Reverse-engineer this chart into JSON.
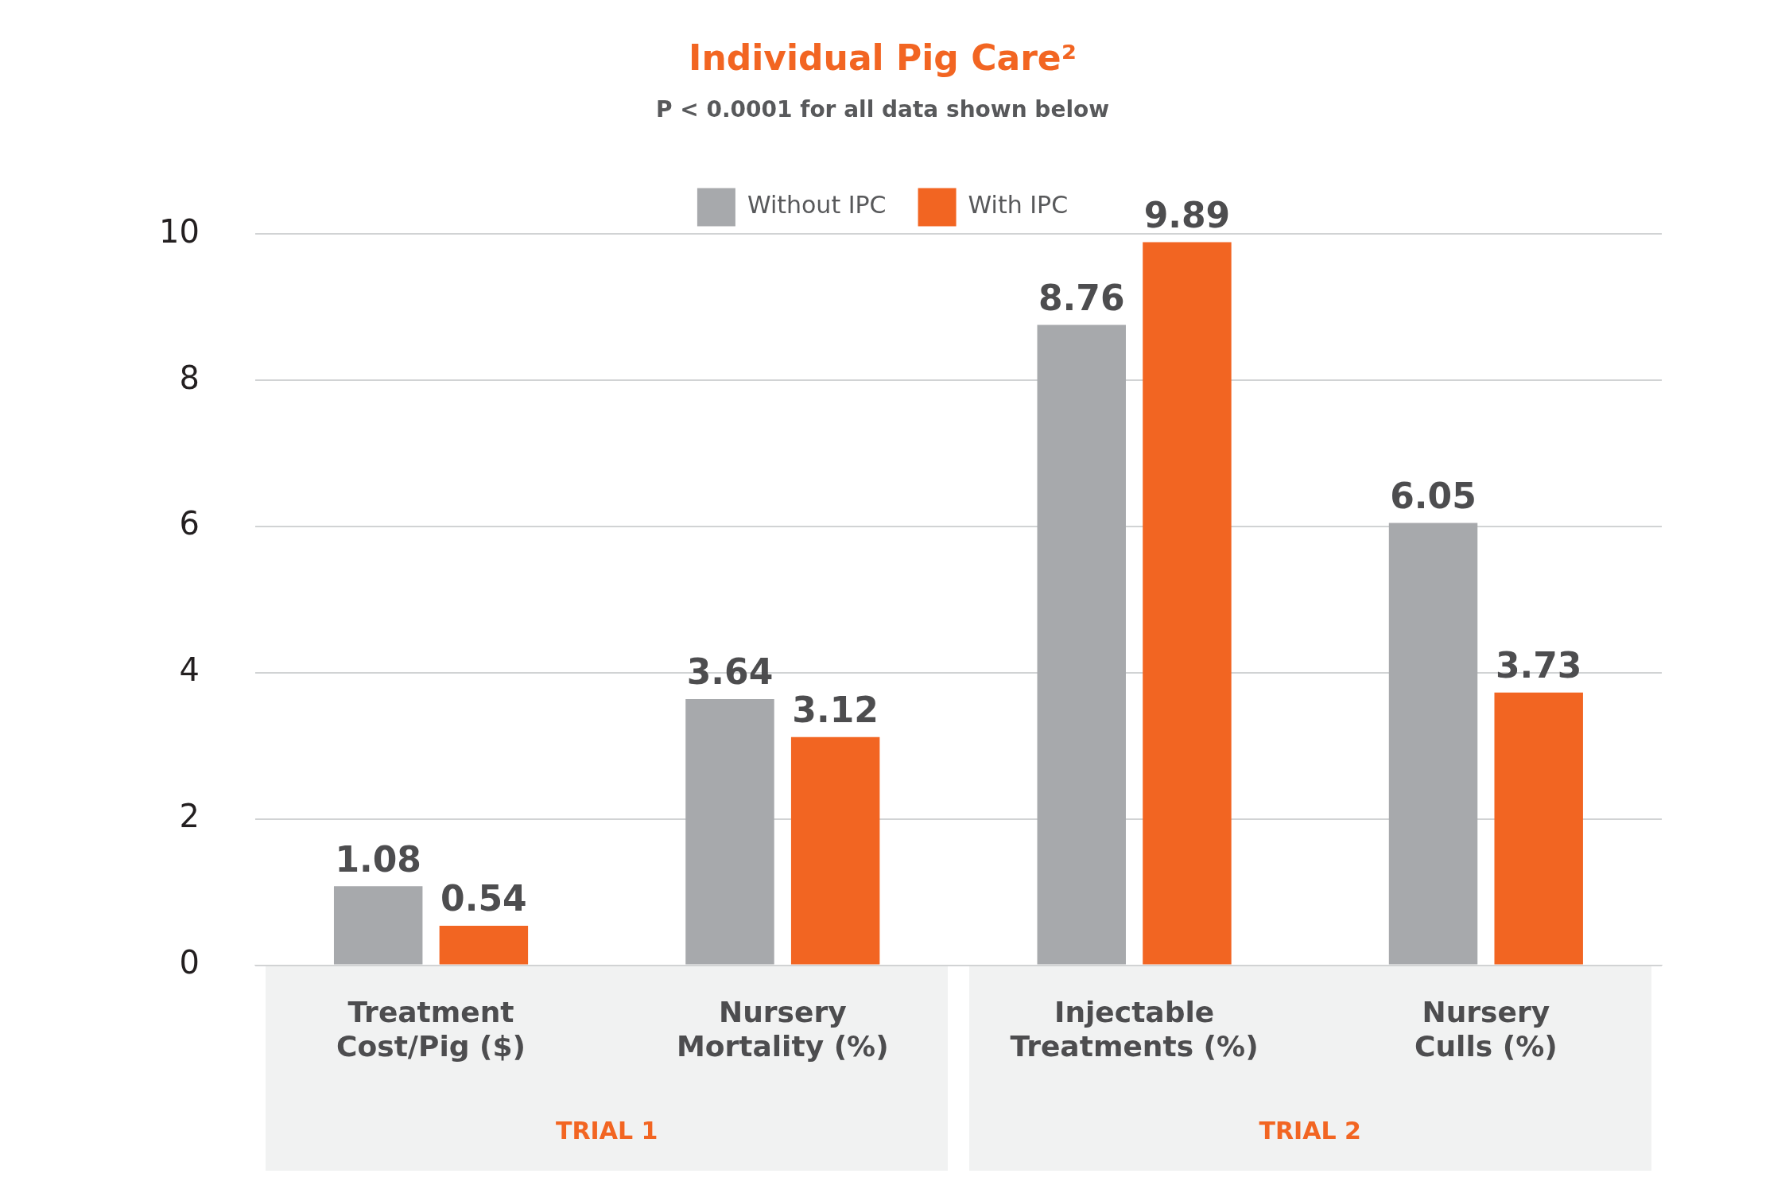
{
  "chart_data": {
    "type": "bar",
    "title": "Individual Pig Care²",
    "subtitle": "P < 0.0001 for all data shown below",
    "categories": [
      "Treatment Cost/Pig ($)",
      "Nursery Mortality (%)",
      "Injectable Treatments (%)",
      "Nursery Culls (%)"
    ],
    "series": [
      {
        "name": "Without IPC",
        "color": "#a7a9ac",
        "values": [
          1.08,
          3.64,
          8.76,
          6.05
        ]
      },
      {
        "name": "With IPC",
        "color": "#f26522",
        "values": [
          0.54,
          3.12,
          9.89,
          3.73
        ]
      }
    ],
    "ylim": [
      0,
      10
    ],
    "yticks": [
      0,
      2,
      4,
      6,
      8,
      10
    ],
    "grid": "y",
    "legend": "top",
    "data_labels": true,
    "annotations": [
      "TRIAL 1",
      "TRIAL 2"
    ]
  }
}
